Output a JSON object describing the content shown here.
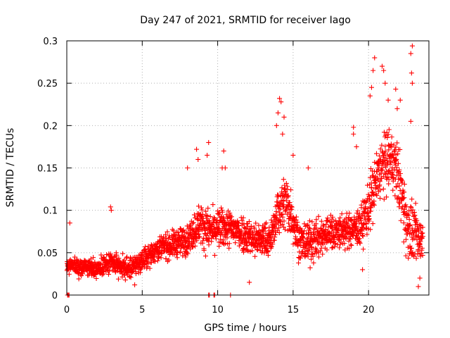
{
  "chart_data": {
    "type": "scatter",
    "title": "Day 247 of 2021, SRMTID for receiver Iago",
    "xlabel": "GPS time / hours",
    "ylabel": "SRMTID / TECUs",
    "xlim": [
      0,
      24
    ],
    "ylim": [
      0,
      0.3
    ],
    "x_ticks": [
      0,
      5,
      10,
      15,
      20
    ],
    "x_tick_labels": [
      "0",
      "5",
      "10",
      "15",
      "20"
    ],
    "y_ticks": [
      0,
      0.05,
      0.1,
      0.15,
      0.2,
      0.25,
      0.3
    ],
    "y_tick_labels": [
      "0",
      "0.05",
      "0.1",
      "0.15",
      "0.2",
      "0.25",
      "0.3"
    ],
    "grid": true,
    "marker": "+",
    "color": "#ff0000",
    "trend_knots": {
      "x": [
        0,
        1,
        2,
        3,
        4,
        5,
        6,
        7,
        8,
        8.8,
        9.5,
        10.5,
        11.5,
        12.5,
        13.5,
        14,
        14.6,
        15.5,
        16.5,
        17.5,
        18.5,
        19.5,
        20.2,
        20.8,
        21.5,
        22,
        22.5,
        23,
        23.5
      ],
      "y": [
        0.035,
        0.033,
        0.032,
        0.038,
        0.03,
        0.04,
        0.055,
        0.06,
        0.065,
        0.085,
        0.075,
        0.08,
        0.075,
        0.065,
        0.065,
        0.1,
        0.11,
        0.06,
        0.065,
        0.075,
        0.075,
        0.08,
        0.115,
        0.15,
        0.16,
        0.14,
        0.085,
        0.07,
        0.065
      ]
    },
    "spread_knots": {
      "x": [
        0,
        5,
        8,
        9,
        13.8,
        14.2,
        15,
        19,
        20,
        20.5,
        21.5,
        22.5,
        23.5
      ],
      "y": [
        0.012,
        0.014,
        0.02,
        0.028,
        0.022,
        0.045,
        0.03,
        0.022,
        0.035,
        0.045,
        0.04,
        0.045,
        0.03
      ]
    },
    "point_count": 2300,
    "outliers": [
      {
        "x": 14.1,
        "y": 0.232
      },
      {
        "x": 14.2,
        "y": 0.228
      },
      {
        "x": 13.9,
        "y": 0.2
      },
      {
        "x": 14.3,
        "y": 0.19
      },
      {
        "x": 14.0,
        "y": 0.215
      },
      {
        "x": 14.4,
        "y": 0.21
      },
      {
        "x": 9.4,
        "y": 0.18
      },
      {
        "x": 8.6,
        "y": 0.172
      },
      {
        "x": 9.3,
        "y": 0.165
      },
      {
        "x": 10.4,
        "y": 0.17
      },
      {
        "x": 10.3,
        "y": 0.15
      },
      {
        "x": 10.5,
        "y": 0.15
      },
      {
        "x": 8.0,
        "y": 0.15
      },
      {
        "x": 8.7,
        "y": 0.16
      },
      {
        "x": 22.9,
        "y": 0.294
      },
      {
        "x": 22.8,
        "y": 0.285
      },
      {
        "x": 22.85,
        "y": 0.262
      },
      {
        "x": 22.9,
        "y": 0.25
      },
      {
        "x": 22.8,
        "y": 0.205
      },
      {
        "x": 20.4,
        "y": 0.28
      },
      {
        "x": 20.9,
        "y": 0.27
      },
      {
        "x": 21.0,
        "y": 0.265
      },
      {
        "x": 20.3,
        "y": 0.265
      },
      {
        "x": 21.1,
        "y": 0.25
      },
      {
        "x": 20.2,
        "y": 0.245
      },
      {
        "x": 21.8,
        "y": 0.243
      },
      {
        "x": 20.1,
        "y": 0.235
      },
      {
        "x": 21.3,
        "y": 0.23
      },
      {
        "x": 22.1,
        "y": 0.23
      },
      {
        "x": 21.9,
        "y": 0.22
      },
      {
        "x": 19.0,
        "y": 0.198
      },
      {
        "x": 19.0,
        "y": 0.19
      },
      {
        "x": 19.2,
        "y": 0.175
      },
      {
        "x": 16.0,
        "y": 0.15
      },
      {
        "x": 15.0,
        "y": 0.165
      },
      {
        "x": 23.3,
        "y": 0.01
      },
      {
        "x": 23.4,
        "y": 0.02
      },
      {
        "x": 0.2,
        "y": 0.085
      },
      {
        "x": 2.9,
        "y": 0.104
      },
      {
        "x": 2.95,
        "y": 0.1
      },
      {
        "x": 4.5,
        "y": 0.012
      },
      {
        "x": 12.1,
        "y": 0.015
      },
      {
        "x": 19.6,
        "y": 0.03
      }
    ],
    "zero_points": [
      {
        "x": 0.05,
        "y": 0
      },
      {
        "x": 0.1,
        "y": 0
      },
      {
        "x": 0.15,
        "y": 0
      },
      {
        "x": 9.4,
        "y": 0
      },
      {
        "x": 9.45,
        "y": 0
      },
      {
        "x": 9.75,
        "y": 0
      },
      {
        "x": 9.8,
        "y": 0
      },
      {
        "x": 10.85,
        "y": 0
      }
    ]
  }
}
